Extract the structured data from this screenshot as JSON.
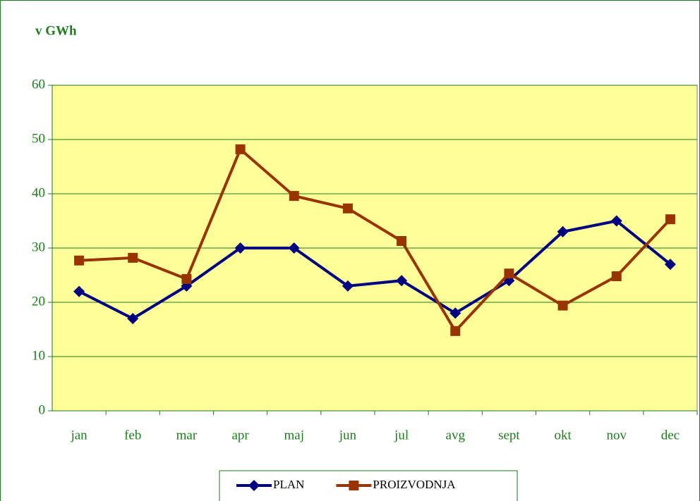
{
  "chart_data": {
    "type": "line",
    "y_label": "v GWh",
    "categories": [
      "jan",
      "feb",
      "mar",
      "apr",
      "maj",
      "jun",
      "jul",
      "avg",
      "sept",
      "okt",
      "nov",
      "dec"
    ],
    "series": [
      {
        "name": "PLAN",
        "color": "#000080",
        "marker": "diamond",
        "values": [
          22,
          17,
          23,
          30,
          30,
          23,
          24,
          18,
          24,
          33,
          35,
          27
        ]
      },
      {
        "name": "PROIZVODNJA",
        "color": "#993300",
        "marker": "square",
        "values": [
          27.7,
          28.2,
          24.3,
          48.2,
          39.6,
          37.3,
          31.3,
          14.7,
          25.3,
          19.4,
          24.8,
          35.3
        ]
      }
    ],
    "ylim": [
      0,
      60
    ],
    "yticks": [
      0,
      10,
      20,
      30,
      40,
      50,
      60
    ],
    "grid": true,
    "legend": "bottom",
    "plot_background": "#ffff99"
  }
}
